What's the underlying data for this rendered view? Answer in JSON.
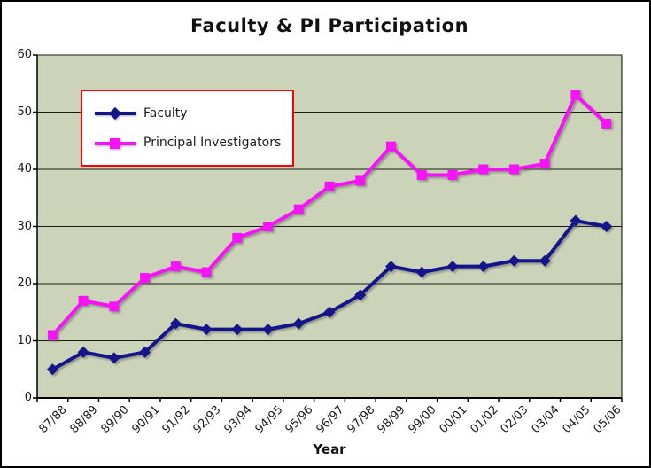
{
  "chart_data": {
    "type": "line",
    "title": "Faculty & PI Participation",
    "xlabel": "Year",
    "ylabel": "",
    "categories": [
      "87/88",
      "88/89",
      "89/90",
      "90/91",
      "91/92",
      "92/93",
      "93/94",
      "94/95",
      "95/96",
      "96/97",
      "97/98",
      "98/99",
      "99/00",
      "00/01",
      "01/02",
      "02/03",
      "03/04",
      "04/05",
      "05/06"
    ],
    "series": [
      {
        "name": "Faculty",
        "marker": "diamond",
        "color": "#15158A",
        "values": [
          5,
          8,
          7,
          8,
          13,
          12,
          12,
          12,
          13,
          15,
          18,
          23,
          22,
          23,
          23,
          24,
          24,
          31,
          30
        ]
      },
      {
        "name": "Principal Investigators",
        "marker": "square",
        "color": "#F713F7",
        "values": [
          11,
          17,
          16,
          21,
          23,
          22,
          28,
          30,
          33,
          37,
          38,
          44,
          39,
          39,
          40,
          40,
          41,
          53,
          48
        ]
      }
    ],
    "ylim": [
      0,
      60
    ],
    "y_ticks": [
      0,
      10,
      20,
      30,
      40,
      50,
      60
    ],
    "grid": true,
    "legend_position": "upper-left-inside",
    "colors": {
      "plot_bg": "#CBD4B9",
      "grid_line": "#1a1a1a",
      "axis_line": "#000000",
      "legend_border": "#FF0000",
      "axis_text": "#1a1a1a"
    }
  }
}
